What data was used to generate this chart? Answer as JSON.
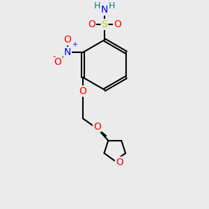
{
  "bg_color": "#ebebeb",
  "atom_colors": {
    "C": "#000000",
    "N": "#0000ff",
    "O": "#ff0000",
    "S": "#cccc00",
    "H": "#008080"
  },
  "bond_color": "#000000",
  "bond_width": 1.5,
  "figsize": [
    3.0,
    3.0
  ],
  "dpi": 100
}
